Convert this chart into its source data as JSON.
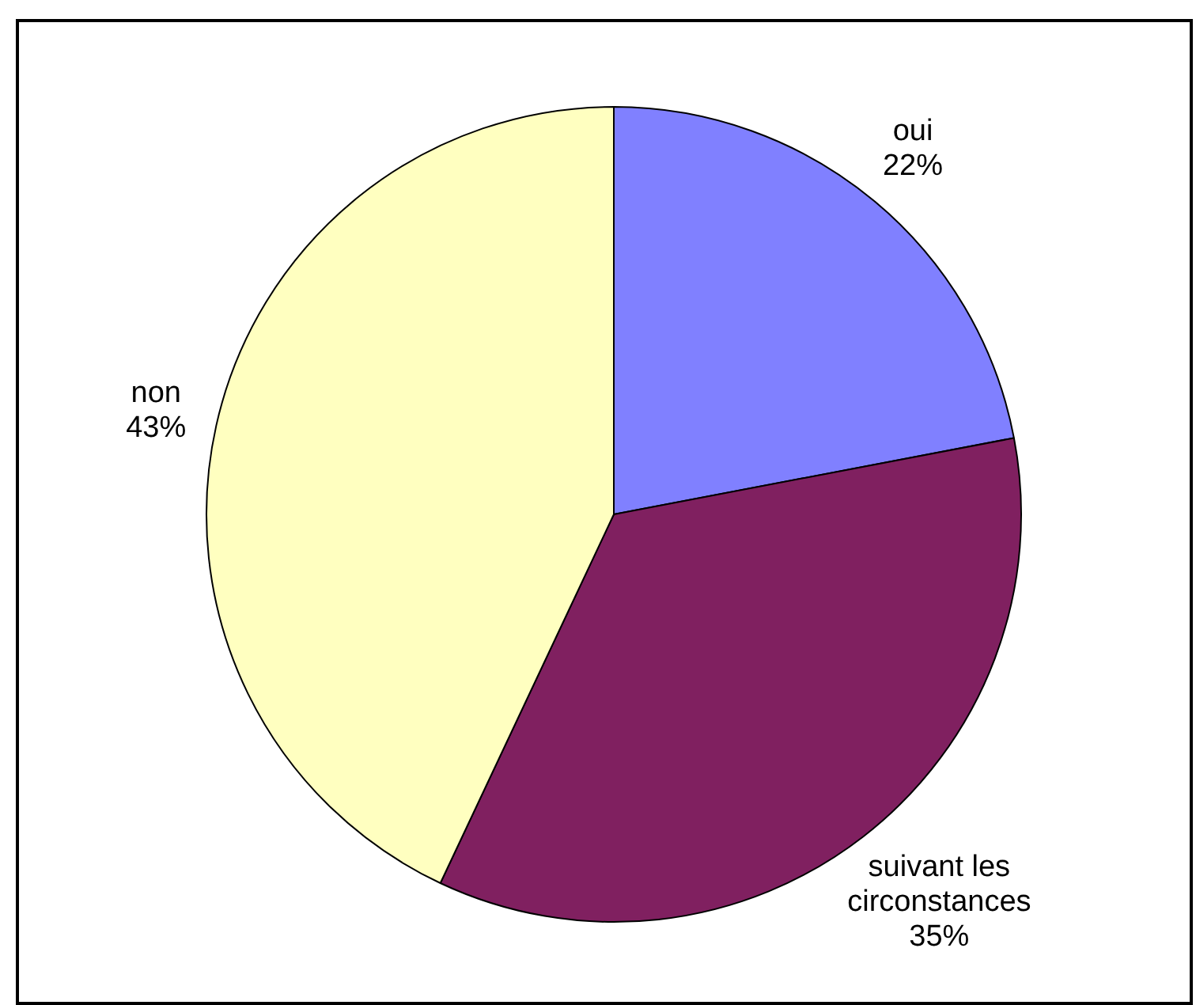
{
  "chart_data": {
    "type": "pie",
    "categories": [
      "oui",
      "suivant les circonstances",
      "non"
    ],
    "values": [
      22,
      35,
      43
    ],
    "colors": [
      "#8080ff",
      "#802060",
      "#ffffc0"
    ],
    "value_labels": [
      "22%",
      "35%",
      "43%"
    ],
    "legend": false
  }
}
